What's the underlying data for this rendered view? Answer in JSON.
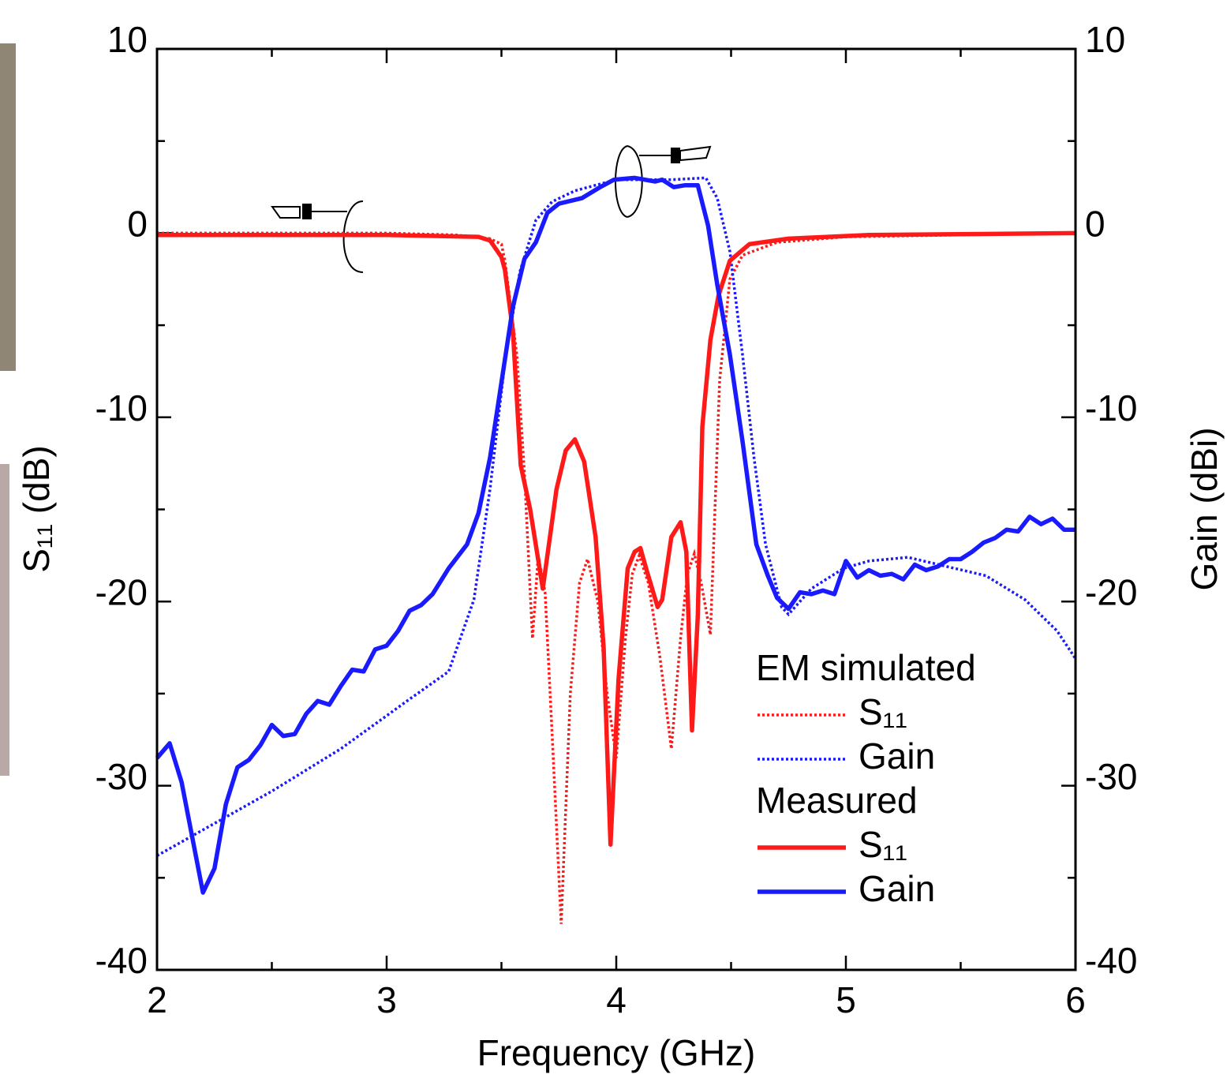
{
  "chart_data": {
    "type": "line",
    "xlabel": "Frequency (GHz)",
    "ylabel": "S₁₁ (dB)",
    "y2label": "Gain (dBi)",
    "xlim": [
      2,
      6
    ],
    "xticks": [
      2,
      3,
      4,
      5,
      6
    ],
    "xminor": [
      2.5,
      3.5,
      4.5,
      5.5
    ],
    "ylim": [
      -40,
      10
    ],
    "yticks": [
      -40,
      -30,
      -20,
      -10,
      0,
      10
    ],
    "yminor": [
      -35,
      -25,
      -15,
      -5,
      5
    ],
    "y2lim": [
      -40,
      10
    ],
    "y2ticks": [
      -40,
      -30,
      -20,
      -10,
      0,
      10
    ],
    "series_groups": [
      {
        "name": "EM simulated",
        "series": [
          {
            "name": "S₁₁",
            "color": "#ff1a1a",
            "style": "dotted",
            "axis": "y",
            "x": [
              2,
              2.5,
              3,
              3.3,
              3.45,
              3.5,
              3.515,
              3.567,
              3.6,
              3.635,
              3.66,
              3.69,
              3.72,
              3.76,
              3.8,
              3.84,
              3.875,
              3.92,
              3.96,
              4.0,
              4.04,
              4.07,
              4.1,
              4.14,
              4.19,
              4.24,
              4.28,
              4.31,
              4.34,
              4.37,
              4.41,
              4.45,
              4.495,
              4.55,
              4.7,
              5,
              5.5,
              6
            ],
            "values": [
              0,
              0,
              0,
              -0.1,
              -0.3,
              -0.6,
              -1.5,
              -6.6,
              -13,
              -22,
              -17.5,
              -19.5,
              -27,
              -37.5,
              -25,
              -19,
              -17.7,
              -20,
              -25,
              -28.5,
              -22,
              -18.5,
              -17.5,
              -19,
              -23,
              -28,
              -22,
              -18.5,
              -17.4,
              -19,
              -21.8,
              -8,
              -2.5,
              -1.2,
              -0.5,
              -0.2,
              -0.1,
              0
            ]
          },
          {
            "name": "Gain",
            "color": "#1a1aff",
            "style": "dotted",
            "axis": "y2",
            "x": [
              2,
              2.5,
              2.8,
              3.1,
              3.27,
              3.38,
              3.45,
              3.515,
              3.58,
              3.65,
              3.72,
              3.82,
              4.0,
              4.24,
              4.39,
              4.44,
              4.495,
              4.55,
              4.6,
              4.65,
              4.72,
              4.75,
              4.85,
              4.99,
              5.1,
              5.27,
              5.44,
              5.61,
              5.78,
              5.92,
              6
            ],
            "values": [
              -33.8,
              -30.3,
              -28,
              -25.3,
              -23.8,
              -19.9,
              -13.9,
              -7,
              -2.1,
              0.7,
              1.7,
              2.3,
              2.9,
              2.9,
              3.0,
              1.9,
              -1,
              -6.6,
              -12.2,
              -16.9,
              -20.3,
              -20.7,
              -19.3,
              -18.2,
              -17.8,
              -17.6,
              -18.1,
              -18.6,
              -19.9,
              -21.6,
              -23.1
            ]
          }
        ]
      },
      {
        "name": "Measured",
        "series": [
          {
            "name": "S₁₁",
            "color": "#ff1a1a",
            "style": "solid",
            "axis": "y",
            "x": [
              2,
              2.5,
              3,
              3.4,
              3.45,
              3.5,
              3.515,
              3.55,
              3.584,
              3.625,
              3.68,
              3.74,
              3.78,
              3.82,
              3.86,
              3.91,
              3.945,
              3.975,
              4.01,
              4.05,
              4.08,
              4.105,
              4.13,
              4.18,
              4.2,
              4.24,
              4.28,
              4.305,
              4.33,
              4.355,
              4.375,
              4.41,
              4.445,
              4.495,
              4.58,
              4.75,
              5.1,
              6
            ],
            "values": [
              -0.1,
              -0.1,
              -0.1,
              -0.2,
              -0.4,
              -1.3,
              -2,
              -5.3,
              -12.6,
              -15,
              -19.3,
              -13.9,
              -11.8,
              -11.2,
              -12.4,
              -16.5,
              -22.5,
              -33.2,
              -24.2,
              -18.2,
              -17.3,
              -17.1,
              -18.2,
              -20.3,
              -19.9,
              -16.5,
              -15.7,
              -17.3,
              -27,
              -20.8,
              -10.5,
              -5.8,
              -3.4,
              -1.5,
              -0.6,
              -0.3,
              -0.1,
              0
            ]
          },
          {
            "name": "Gain",
            "color": "#1a1aff",
            "style": "solid",
            "axis": "y2",
            "x": [
              2,
              2.055,
              2.107,
              2.2,
              2.25,
              2.3,
              2.35,
              2.4,
              2.45,
              2.5,
              2.55,
              2.6,
              2.65,
              2.7,
              2.75,
              2.8,
              2.85,
              2.9,
              2.95,
              3.0,
              3.05,
              3.1,
              3.15,
              3.2,
              3.27,
              3.35,
              3.4,
              3.45,
              3.5,
              3.55,
              3.6,
              3.65,
              3.7,
              3.75,
              3.85,
              3.93,
              3.99,
              4.08,
              4.17,
              4.2,
              4.25,
              4.3,
              4.355,
              4.4,
              4.44,
              4.495,
              4.55,
              4.61,
              4.66,
              4.7,
              4.75,
              4.8,
              4.85,
              4.9,
              4.95,
              5.0,
              5.05,
              5.1,
              5.15,
              5.2,
              5.25,
              5.3,
              5.35,
              5.4,
              5.45,
              5.5,
              5.55,
              5.6,
              5.65,
              5.7,
              5.75,
              5.8,
              5.85,
              5.9,
              5.95,
              6
            ],
            "values": [
              -28.5,
              -27.7,
              -29.8,
              -35.8,
              -34.5,
              -31,
              -29,
              -28.6,
              -27.8,
              -26.7,
              -27.3,
              -27.2,
              -26.1,
              -25.4,
              -25.6,
              -24.6,
              -23.7,
              -23.8,
              -22.6,
              -22.4,
              -21.6,
              -20.5,
              -20.2,
              -19.6,
              -18.2,
              -16.9,
              -15.2,
              -12.2,
              -8.1,
              -4.0,
              -1.4,
              -0.5,
              1.1,
              1.6,
              1.9,
              2.5,
              2.9,
              3.0,
              2.8,
              2.9,
              2.5,
              2.6,
              2.6,
              0.4,
              -2.8,
              -6.6,
              -11.3,
              -16.9,
              -18.6,
              -19.8,
              -20.4,
              -19.5,
              -19.6,
              -19.4,
              -19.6,
              -17.8,
              -18.7,
              -18.3,
              -18.6,
              -18.5,
              -18.8,
              -18.0,
              -18.3,
              -18.1,
              -17.7,
              -17.7,
              -17.3,
              -16.8,
              -16.55,
              -16.1,
              -16.2,
              -15.4,
              -15.8,
              -15.5,
              -16.1,
              -16.1
            ]
          }
        ]
      }
    ]
  }
}
